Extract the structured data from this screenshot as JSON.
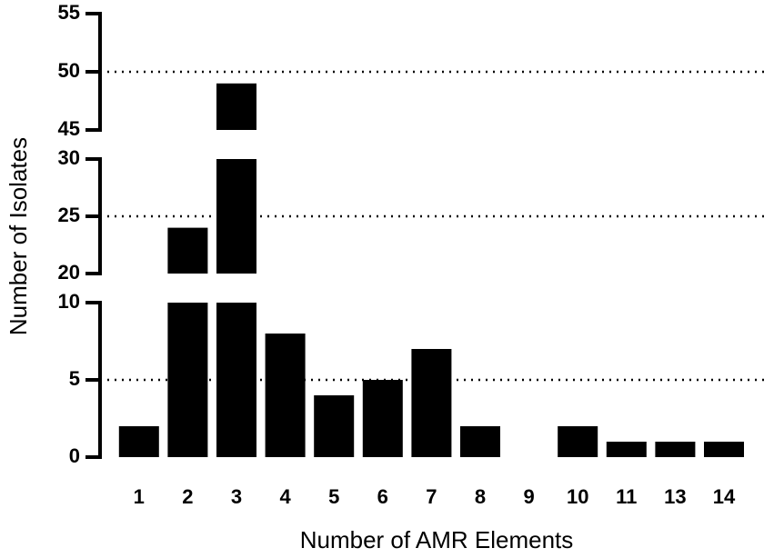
{
  "chart_data": {
    "type": "bar",
    "x_label": "Number of AMR Elements",
    "y_label": "Number of Isolates",
    "categories": [
      "1",
      "2",
      "3",
      "4",
      "5",
      "6",
      "7",
      "8",
      "9",
      "10",
      "11",
      "13",
      "14"
    ],
    "values": [
      2,
      24,
      49,
      8,
      4,
      5,
      7,
      2,
      0,
      2,
      1,
      1,
      1
    ],
    "color": "#000000",
    "y_segments": [
      {
        "ylim": [
          0,
          10
        ],
        "yticks": [
          0,
          5,
          10
        ]
      },
      {
        "ylim": [
          20,
          30
        ],
        "yticks": [
          20,
          25,
          30
        ]
      },
      {
        "ylim": [
          45,
          55
        ],
        "yticks": [
          45,
          50,
          55
        ]
      }
    ],
    "grid_lines": [
      5,
      25,
      50
    ],
    "grid_style": "dotted"
  }
}
